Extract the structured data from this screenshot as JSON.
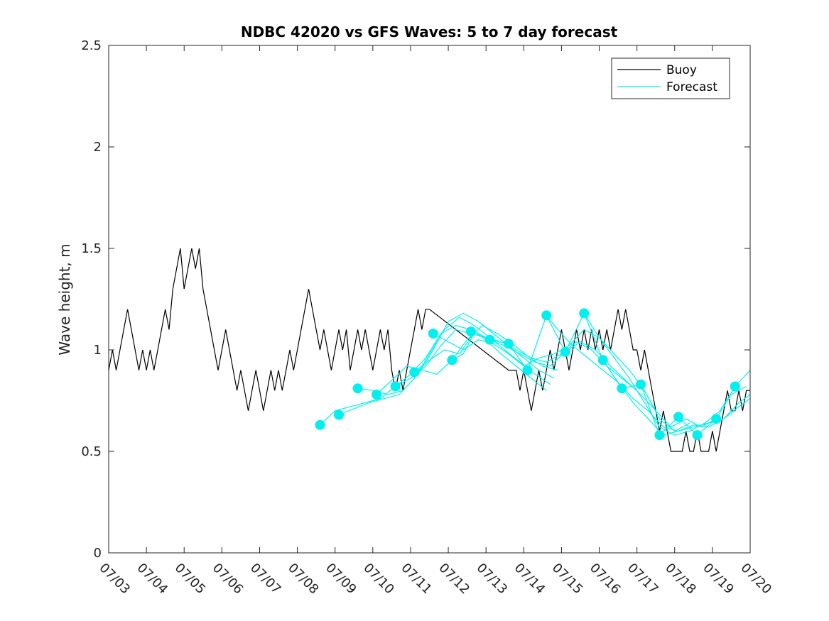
{
  "chart_data": {
    "type": "line",
    "title": "NDBC 42020 vs GFS Waves: 5 to 7 day forecast",
    "xlabel": "",
    "ylabel": "Wave height, m",
    "xlim": [
      "07/03",
      "07/20"
    ],
    "ylim": [
      0,
      2.5
    ],
    "x_ticks": [
      "07/03",
      "07/04",
      "07/05",
      "07/06",
      "07/07",
      "07/08",
      "07/09",
      "07/10",
      "07/11",
      "07/12",
      "07/13",
      "07/14",
      "07/15",
      "07/16",
      "07/17",
      "07/18",
      "07/19",
      "07/20"
    ],
    "y_ticks": [
      "0",
      "0.5",
      "1",
      "1.5",
      "2",
      "2.5"
    ],
    "legend_position": "top-right",
    "colors": {
      "buoy": "#000000",
      "forecast": "#00f0f0"
    },
    "series": [
      {
        "name": "Buoy",
        "x_day": [
          3.0,
          3.1,
          3.2,
          3.3,
          3.4,
          3.5,
          3.6,
          3.7,
          3.8,
          3.9,
          4.0,
          4.1,
          4.2,
          4.3,
          4.4,
          4.5,
          4.6,
          4.7,
          4.8,
          4.9,
          5.0,
          5.1,
          5.2,
          5.3,
          5.4,
          5.5,
          5.6,
          5.7,
          5.8,
          5.9,
          6.0,
          6.1,
          6.2,
          6.3,
          6.4,
          6.5,
          6.6,
          6.7,
          6.8,
          6.9,
          7.0,
          7.1,
          7.2,
          7.3,
          7.4,
          7.5,
          7.6,
          7.7,
          7.8,
          7.9,
          8.0,
          8.1,
          8.2,
          8.3,
          8.4,
          8.5,
          8.6,
          8.7,
          8.8,
          8.9,
          9.0,
          9.1,
          9.2,
          9.3,
          9.4,
          9.5,
          9.6,
          9.7,
          9.8,
          9.9,
          10.0,
          10.1,
          10.2,
          10.3,
          10.4,
          10.5,
          10.6,
          10.7,
          10.8,
          10.9,
          11.0,
          11.1,
          11.2,
          11.3,
          11.4,
          11.5,
          13.6,
          13.7,
          13.8,
          13.9,
          14.0,
          14.1,
          14.2,
          14.3,
          14.4,
          14.5,
          14.6,
          14.7,
          14.8,
          14.9,
          15.0,
          15.1,
          15.2,
          15.3,
          15.4,
          15.5,
          15.6,
          15.7,
          15.8,
          15.9,
          16.0,
          16.1,
          16.2,
          16.3,
          16.4,
          16.5,
          16.6,
          16.7,
          16.8,
          16.9,
          17.0,
          17.1,
          17.2,
          17.3,
          17.4,
          17.5,
          17.6,
          17.7,
          17.8,
          17.9,
          18.0,
          18.1,
          18.2,
          18.3,
          18.4,
          18.5,
          18.6,
          18.7,
          18.8,
          18.9,
          19.0,
          19.1,
          19.2,
          19.3,
          19.4,
          19.5,
          19.6,
          19.7,
          19.8,
          19.9,
          20.0
        ],
        "values": [
          0.9,
          1.0,
          0.9,
          1.0,
          1.1,
          1.2,
          1.1,
          1.0,
          0.9,
          1.0,
          0.9,
          1.0,
          0.9,
          1.0,
          1.1,
          1.2,
          1.1,
          1.3,
          1.4,
          1.5,
          1.3,
          1.4,
          1.5,
          1.4,
          1.5,
          1.3,
          1.2,
          1.1,
          1.0,
          0.9,
          1.0,
          1.1,
          1.0,
          0.9,
          0.8,
          0.9,
          0.8,
          0.7,
          0.8,
          0.9,
          0.8,
          0.7,
          0.8,
          0.9,
          0.8,
          0.9,
          0.8,
          0.9,
          1.0,
          0.9,
          1.0,
          1.1,
          1.2,
          1.3,
          1.2,
          1.1,
          1.0,
          1.1,
          1.0,
          0.9,
          1.0,
          1.1,
          1.0,
          1.1,
          0.9,
          1.0,
          1.1,
          1.0,
          1.1,
          1.0,
          0.9,
          1.0,
          1.1,
          1.0,
          1.1,
          0.9,
          0.8,
          0.9,
          0.8,
          0.9,
          1.0,
          1.1,
          1.2,
          1.1,
          1.2,
          1.2,
          0.9,
          0.9,
          0.9,
          0.8,
          0.9,
          0.8,
          0.7,
          0.8,
          0.9,
          0.8,
          0.9,
          1.0,
          0.9,
          1.0,
          1.1,
          1.0,
          0.9,
          1.0,
          1.1,
          1.0,
          1.1,
          1.0,
          1.1,
          1.0,
          1.1,
          1.0,
          1.1,
          1.0,
          1.1,
          1.2,
          1.1,
          1.2,
          1.1,
          1.0,
          1.0,
          0.9,
          1.0,
          0.9,
          0.8,
          0.7,
          0.6,
          0.7,
          0.6,
          0.5,
          0.5,
          0.5,
          0.5,
          0.6,
          0.5,
          0.5,
          0.6,
          0.5,
          0.5,
          0.5,
          0.6,
          0.5,
          0.6,
          0.7,
          0.8,
          0.7,
          0.7,
          0.8,
          0.7,
          0.8,
          0.8
        ]
      },
      {
        "name": "Forecast",
        "runs": [
          {
            "x_day": [
              8.6,
              9.0,
              9.4,
              9.8,
              10.2,
              10.6,
              11.0,
              11.4,
              11.8,
              12.2,
              12.6,
              13.0,
              13.4,
              13.8,
              14.2,
              14.6
            ],
            "values": [
              0.63,
              0.7,
              0.72,
              0.74,
              0.76,
              0.82,
              0.88,
              0.96,
              1.08,
              1.12,
              1.1,
              1.05,
              0.98,
              0.92,
              0.86,
              0.8
            ]
          },
          {
            "x_day": [
              9.1,
              9.5,
              9.9,
              10.3,
              10.7,
              11.1,
              11.5,
              11.9,
              12.3,
              12.7,
              13.1,
              13.5,
              13.9,
              14.3,
              14.7
            ],
            "values": [
              0.68,
              0.71,
              0.74,
              0.76,
              0.78,
              0.86,
              0.98,
              1.1,
              1.16,
              1.12,
              1.06,
              1.0,
              0.94,
              0.88,
              0.83
            ]
          },
          {
            "x_day": [
              9.6,
              10.0,
              10.4,
              10.8,
              11.2,
              11.6,
              12.0,
              12.4,
              12.8,
              13.2,
              13.6,
              14.0,
              14.4,
              14.8
            ],
            "values": [
              0.81,
              0.8,
              0.78,
              0.8,
              0.88,
              1.0,
              1.14,
              1.18,
              1.14,
              1.08,
              1.02,
              0.96,
              0.9,
              0.86
            ]
          },
          {
            "x_day": [
              10.1,
              10.5,
              10.9,
              11.3,
              11.7,
              12.1,
              12.5,
              12.9,
              13.3,
              13.7,
              14.1,
              14.5,
              14.9
            ],
            "values": [
              0.78,
              0.85,
              0.92,
              0.9,
              0.88,
              0.95,
              1.05,
              1.12,
              1.08,
              1.03,
              0.97,
              0.92,
              0.9
            ]
          },
          {
            "x_day": [
              10.6,
              11.0,
              11.4,
              11.8,
              12.2,
              12.6,
              13.0,
              13.4,
              13.8,
              14.2,
              14.6,
              15.0,
              15.4,
              15.8,
              16.2,
              16.6,
              17.0
            ],
            "values": [
              0.82,
              0.86,
              0.92,
              1.02,
              1.1,
              1.08,
              1.06,
              1.04,
              1.0,
              0.96,
              0.94,
              0.98,
              1.04,
              1.0,
              0.92,
              0.86,
              0.8
            ]
          },
          {
            "x_day": [
              11.1,
              11.5,
              11.9,
              12.3,
              12.7,
              13.1,
              13.5,
              13.9,
              14.3,
              14.7,
              15.1,
              15.5,
              15.9,
              16.3,
              16.7,
              17.1,
              17.5
            ],
            "values": [
              0.89,
              0.95,
              1.0,
              0.98,
              1.09,
              1.05,
              1.02,
              0.98,
              0.94,
              0.92,
              0.99,
              1.04,
              1.0,
              0.92,
              0.85,
              0.78,
              0.7
            ]
          },
          {
            "x_day": [
              11.6,
              12.0,
              12.4,
              12.8,
              13.2,
              13.6,
              14.0,
              14.4,
              14.8,
              15.2,
              15.6,
              16.0,
              16.4,
              16.8,
              17.2,
              17.6,
              18.0,
              18.4
            ],
            "values": [
              1.08,
              1.04,
              1.0,
              1.05,
              1.03,
              0.98,
              0.92,
              0.96,
              0.98,
              1.02,
              1.1,
              1.06,
              0.98,
              0.9,
              0.8,
              0.66,
              0.6,
              0.64
            ]
          },
          {
            "x_day": [
              12.1,
              12.4,
              12.7,
              13.1,
              13.6,
              14.1,
              14.6,
              15.1,
              15.6,
              16.1,
              16.6,
              17.1,
              17.6,
              18.1,
              18.6,
              19.1
            ],
            "values": [
              0.95,
              0.98,
              1.09,
              1.05,
              1.03,
              0.9,
              1.17,
              0.99,
              1.18,
              0.95,
              0.81,
              0.83,
              0.58,
              0.67,
              0.58,
              0.66
            ]
          },
          {
            "x_day": [
              14.6,
              14.9,
              15.3,
              15.7,
              16.1,
              16.5,
              16.9,
              17.3,
              17.7,
              18.1,
              18.5,
              18.9,
              19.3,
              19.7,
              20.0
            ],
            "values": [
              1.17,
              1.1,
              1.02,
              0.96,
              0.9,
              0.84,
              0.76,
              0.7,
              0.62,
              0.6,
              0.62,
              0.64,
              0.66,
              0.74,
              0.78
            ]
          },
          {
            "x_day": [
              15.6,
              16.0,
              16.4,
              16.8,
              17.2,
              17.6,
              18.0,
              18.4,
              18.8,
              19.2,
              19.6,
              20.0
            ],
            "values": [
              1.18,
              1.06,
              0.96,
              0.86,
              0.74,
              0.62,
              0.58,
              0.6,
              0.64,
              0.7,
              0.82,
              0.9
            ]
          },
          {
            "x_day": [
              16.1,
              16.5,
              16.9,
              17.3,
              17.7,
              18.1,
              18.5,
              18.9,
              19.3,
              19.7,
              20.0
            ],
            "values": [
              0.95,
              0.84,
              0.74,
              0.66,
              0.58,
              0.6,
              0.63,
              0.62,
              0.66,
              0.72,
              0.76
            ]
          },
          {
            "x_day": [
              17.1,
              17.5,
              17.9,
              18.3,
              18.7,
              19.1,
              19.5,
              19.9
            ],
            "values": [
              0.83,
              0.7,
              0.62,
              0.66,
              0.62,
              0.66,
              0.78,
              0.82
            ]
          }
        ],
        "markers": {
          "x_day": [
            8.6,
            9.1,
            9.6,
            10.1,
            10.6,
            11.1,
            11.6,
            12.1,
            12.6,
            13.1,
            13.6,
            14.1,
            14.6,
            15.1,
            15.6,
            16.1,
            16.6,
            17.1,
            17.6,
            18.1,
            18.6,
            19.1,
            19.6
          ],
          "values": [
            0.63,
            0.68,
            0.81,
            0.78,
            0.82,
            0.89,
            1.08,
            0.95,
            1.09,
            1.05,
            1.03,
            0.9,
            1.17,
            0.99,
            1.18,
            0.95,
            0.81,
            0.83,
            0.58,
            0.67,
            0.58,
            0.66,
            0.82
          ]
        }
      }
    ]
  }
}
